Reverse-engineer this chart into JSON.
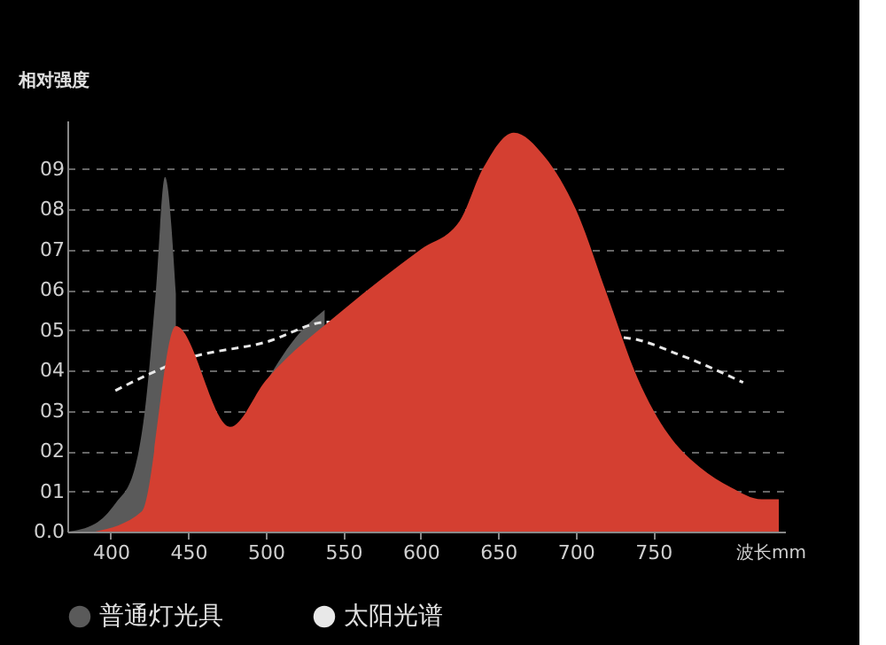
{
  "chart_data": {
    "type": "area",
    "ylabel": "相对强度",
    "xlabel": "波长mm",
    "xlim": [
      372,
      835
    ],
    "xticks": [
      400,
      450,
      500,
      550,
      600,
      650,
      700,
      750
    ],
    "ylim": [
      0,
      10.2
    ],
    "yticks": [
      {
        "value": 0,
        "label": "0.0"
      },
      {
        "value": 1,
        "label": "01"
      },
      {
        "value": 2,
        "label": "02"
      },
      {
        "value": 3,
        "label": "03"
      },
      {
        "value": 4,
        "label": "04"
      },
      {
        "value": 5,
        "label": "05"
      },
      {
        "value": 6,
        "label": "06"
      },
      {
        "value": 7,
        "label": "07"
      },
      {
        "value": 8,
        "label": "08"
      },
      {
        "value": 9,
        "label": "09"
      }
    ],
    "grid": "y",
    "legend": "bottom",
    "series": [
      {
        "name": "普通灯光具",
        "color": "#5a5a5a",
        "x": [
          372,
          390,
          403,
          415,
          422,
          429,
          435,
          442,
          450,
          465,
          480,
          497,
          519,
          538
        ],
        "values": [
          0,
          0.2,
          0.7,
          1.5,
          3,
          5.9,
          8.8,
          5.9,
          null,
          null,
          null,
          3.5,
          4.8,
          5.5
        ]
      },
      {
        "name": "太阳光谱",
        "type": "line",
        "line_style": "dashed",
        "color": "#e8e8e8",
        "x": [
          403,
          450,
          500,
          540,
          734,
          766,
          808
        ],
        "values": [
          3.5,
          4.3,
          4.7,
          5.2,
          4.8,
          4.4,
          3.7
        ]
      },
      {
        "color": "#d43f31",
        "x": [
          390,
          420,
          442,
          477,
          500,
          550,
          600,
          625,
          640,
          660,
          680,
          700,
          720,
          740,
          760,
          780,
          800,
          820,
          831,
          831
        ],
        "values": [
          0,
          0.5,
          5.1,
          2.6,
          3.75,
          5.5,
          7,
          7.7,
          9,
          9.9,
          9.3,
          8,
          5.9,
          3.8,
          2.4,
          1.6,
          1.1,
          0.8,
          0.8,
          0
        ]
      }
    ]
  }
}
